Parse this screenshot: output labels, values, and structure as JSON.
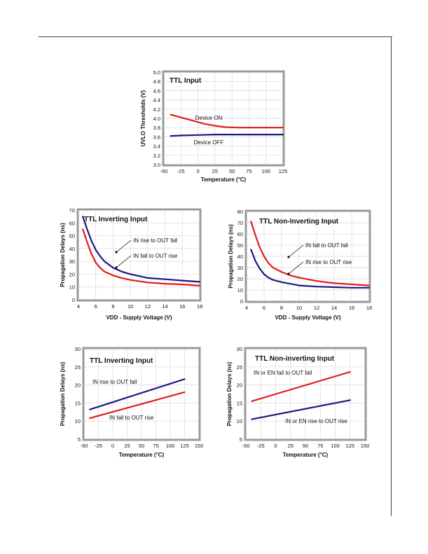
{
  "chart_data": [
    {
      "type": "line",
      "title": "TTL Input",
      "xlabel": "Temperature (°C)",
      "ylabel": "UVLO Thresholds (V)",
      "xlim": [
        -50,
        125
      ],
      "ylim": [
        3.0,
        5.0
      ],
      "xticks": [
        "-50",
        "-25",
        "0",
        "25",
        "50",
        "75",
        "100",
        "125"
      ],
      "yticks": [
        "3.0",
        "3.2",
        "3.4",
        "3.6",
        "3.8",
        "4.0",
        "4.2",
        "4.4",
        "4.6",
        "4.8",
        "5.0"
      ],
      "series": [
        {
          "name": "Device ON",
          "color": "#e31b1b",
          "x": [
            -40,
            -25,
            -10,
            0,
            10,
            25,
            40,
            60,
            80,
            100,
            125
          ],
          "y": [
            4.08,
            4.02,
            3.96,
            3.92,
            3.88,
            3.84,
            3.81,
            3.8,
            3.8,
            3.8,
            3.8
          ]
        },
        {
          "name": "Device OFF",
          "color": "#1a1a7e",
          "x": [
            -40,
            -25,
            0,
            25,
            50,
            75,
            100,
            125
          ],
          "y": [
            3.62,
            3.63,
            3.64,
            3.65,
            3.65,
            3.65,
            3.65,
            3.65
          ]
        }
      ],
      "grid": true
    },
    {
      "type": "line",
      "title": "TTL Inverting Input",
      "xlabel": "VDD - Supply Voltage (V)",
      "ylabel": "Propagation Delays (ns)",
      "xlim": [
        4,
        18
      ],
      "ylim": [
        0,
        70
      ],
      "xticks": [
        "4",
        "6",
        "8",
        "10",
        "12",
        "14",
        "16",
        "18"
      ],
      "yticks": [
        "0",
        "10",
        "20",
        "30",
        "40",
        "50",
        "60",
        "70"
      ],
      "series": [
        {
          "name": "IN rise to OUT fall",
          "color": "#1a1a7e",
          "x": [
            4.5,
            5,
            5.5,
            6,
            6.5,
            7,
            8,
            9,
            10,
            12,
            14,
            16,
            18
          ],
          "y": [
            65,
            55,
            46,
            39,
            34,
            30,
            25,
            22,
            20,
            17,
            16,
            15,
            14
          ]
        },
        {
          "name": "IN fall to OUT rise",
          "color": "#e31b1b",
          "x": [
            4.5,
            5,
            5.5,
            6,
            6.5,
            7,
            8,
            9,
            10,
            12,
            14,
            16,
            18
          ],
          "y": [
            55,
            45,
            36,
            29,
            25,
            22,
            19,
            17,
            15.5,
            13.5,
            12.5,
            12,
            11
          ]
        }
      ],
      "grid": true
    },
    {
      "type": "line",
      "title": "TTL Non-Inverting Input",
      "xlabel": "VDD - Supply Voltage (V)",
      "ylabel": "Propagation Delays (ns)",
      "xlim": [
        4,
        18
      ],
      "ylim": [
        0,
        80
      ],
      "xticks": [
        "4",
        "6",
        "8",
        "10",
        "12",
        "14",
        "16",
        "18"
      ],
      "yticks": [
        "0",
        "10",
        "20",
        "30",
        "40",
        "50",
        "60",
        "70",
        "80"
      ],
      "series": [
        {
          "name": "IN fall to OUT fall",
          "color": "#e31b1b",
          "x": [
            4.5,
            5,
            5.5,
            6,
            6.5,
            7,
            8,
            9,
            10,
            12,
            14,
            16,
            18
          ],
          "y": [
            71,
            59,
            48,
            40,
            34,
            30,
            26,
            23,
            21,
            18,
            16,
            15,
            14
          ]
        },
        {
          "name": "IN rise to OUT rise",
          "color": "#1a1a7e",
          "x": [
            4.5,
            5,
            5.5,
            6,
            6.5,
            7,
            8,
            9,
            10,
            12,
            14,
            16,
            18
          ],
          "y": [
            46,
            36,
            29,
            24,
            21,
            19,
            17,
            15.5,
            14,
            13,
            12.5,
            12,
            12
          ]
        }
      ],
      "grid": true
    },
    {
      "type": "line",
      "title": "TTL Inverting Input",
      "xlabel": "Temperature (°C)",
      "ylabel": "Propagation Delays (ns)",
      "xlim": [
        -50,
        150
      ],
      "ylim": [
        5,
        30
      ],
      "xticks": [
        "-50",
        "-25",
        "0",
        "25",
        "50",
        "75",
        "100",
        "125",
        "150"
      ],
      "yticks": [
        "5",
        "10",
        "15",
        "20",
        "25",
        "30"
      ],
      "series": [
        {
          "name": "IN rise to OUT fall",
          "color": "#1a1a7e",
          "x": [
            -40,
            125
          ],
          "y": [
            13.2,
            21.6
          ]
        },
        {
          "name": "IN fall to OUT rise",
          "color": "#e31b1b",
          "x": [
            -40,
            125
          ],
          "y": [
            10.8,
            18.0
          ]
        }
      ],
      "grid": true
    },
    {
      "type": "line",
      "title": "TTL Non-inverting Input",
      "xlabel": "Temperature (°C)",
      "ylabel": "Propagation Delays (ns)",
      "xlim": [
        -50,
        150
      ],
      "ylim": [
        5,
        30
      ],
      "xticks": [
        "-50",
        "-25",
        "0",
        "25",
        "50",
        "75",
        "100",
        "125",
        "150"
      ],
      "yticks": [
        "5",
        "10",
        "15",
        "20",
        "25",
        "30"
      ],
      "series": [
        {
          "name": "IN or EN fall to OUT fall",
          "color": "#e31b1b",
          "x": [
            -40,
            125
          ],
          "y": [
            15.5,
            23.6
          ]
        },
        {
          "name": "IN or EN rise to OUT rise",
          "color": "#1a1a7e",
          "x": [
            -40,
            125
          ],
          "y": [
            10.5,
            15.8
          ]
        }
      ],
      "grid": true
    }
  ]
}
